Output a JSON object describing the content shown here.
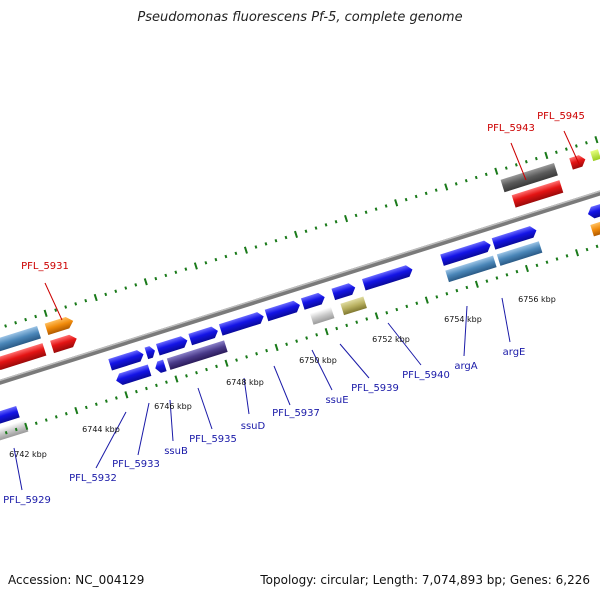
{
  "title": "Pseudomonas fluorescens Pf-5, complete genome",
  "footer": {
    "accession": "Accession: NC_004129",
    "topology": "Topology: circular; Length: 7,074,893 bp; Genes: 6,226"
  },
  "scale_labels": [
    "6742 kbp",
    "6744 kbp",
    "6746 kbp",
    "6748 kbp",
    "6750 kbp",
    "6752 kbp",
    "6754 kbp",
    "6756 kbp"
  ],
  "gene_labels_top": [
    "PFL_5931",
    "PFL_5943",
    "PFL_5945"
  ],
  "gene_labels_bottom": [
    "PFL_5929",
    "PFL_5932",
    "PFL_5933",
    "ssuB",
    "PFL_5935",
    "ssuD",
    "PFL_5937",
    "ssuE",
    "PFL_5939",
    "PFL_5940",
    "argA",
    "argE"
  ],
  "colors": {
    "blue_gene": "#1414e6",
    "red_gene": "#e41414",
    "orange_gene": "#f08a0a",
    "steel_gene": "#4a86b8",
    "dark_gene": "#5a5a5a",
    "tick_green": "#1a7a1a",
    "backbone": "#888888"
  }
}
